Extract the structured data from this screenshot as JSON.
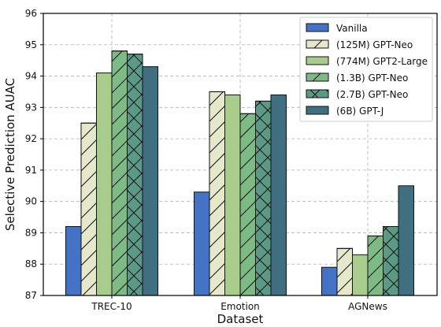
{
  "chart_data": {
    "type": "bar",
    "xlabel": "Dataset",
    "ylabel": "Selective Prediction AUAC",
    "ylim": [
      87,
      96
    ],
    "yticks": [
      87,
      88,
      89,
      90,
      91,
      92,
      93,
      94,
      95,
      96
    ],
    "grid": true,
    "legend_position": "top-right",
    "categories": [
      "TREC-10",
      "Emotion",
      "AGNews"
    ],
    "series": [
      {
        "name": "Vanilla",
        "color": "#4472c4",
        "hatch": "none",
        "values": [
          89.2,
          90.3,
          87.9
        ]
      },
      {
        "name": "(125M) GPT-Neo",
        "color": "#e6e8cc",
        "hatch": "slash",
        "values": [
          92.5,
          93.5,
          88.5
        ]
      },
      {
        "name": "(774M) GPT2-Large",
        "color": "#a8cc8c",
        "hatch": "none",
        "values": [
          94.1,
          93.4,
          88.3
        ]
      },
      {
        "name": "(1.3B) GPT-Neo",
        "color": "#7dba85",
        "hatch": "slash",
        "values": [
          94.8,
          92.8,
          88.9
        ]
      },
      {
        "name": "(2.7B) GPT-Neo",
        "color": "#5a9a86",
        "hatch": "cross",
        "values": [
          94.7,
          93.2,
          89.2
        ]
      },
      {
        "name": "(6B) GPT-J",
        "color": "#3f6f80",
        "hatch": "none",
        "values": [
          94.3,
          93.4,
          90.5
        ]
      }
    ]
  }
}
